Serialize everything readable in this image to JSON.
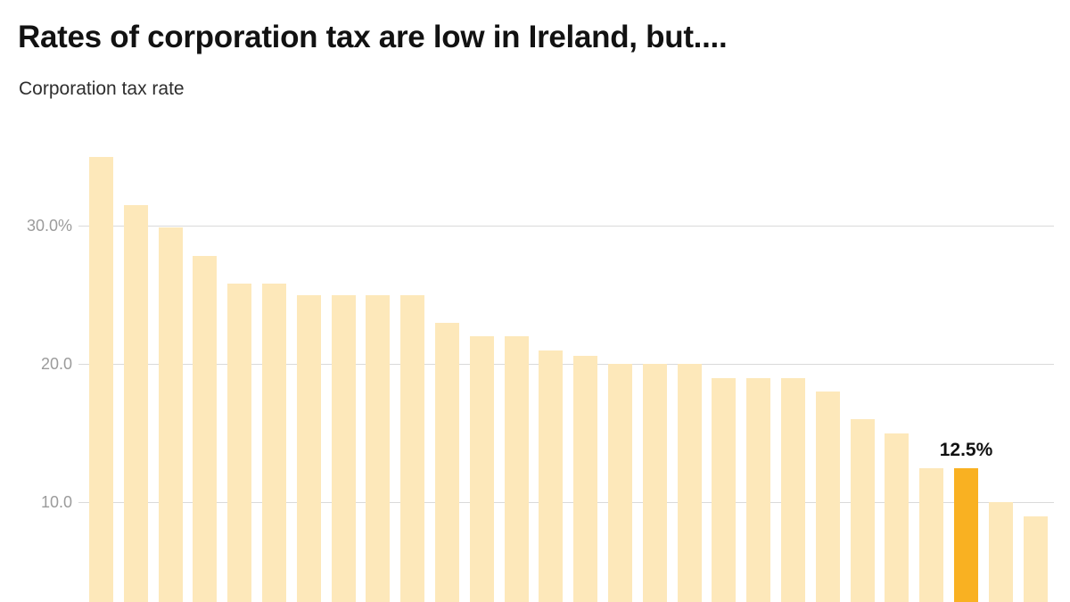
{
  "chart_data": {
    "type": "bar",
    "title": "Rates of corporation tax are low in Ireland, but....",
    "subtitle": "Corporation tax rate",
    "values": [
      35.0,
      31.5,
      29.9,
      27.8,
      25.8,
      25.8,
      25.0,
      25.0,
      25.0,
      25.0,
      23.0,
      22.0,
      22.0,
      21.0,
      20.6,
      20.0,
      20.0,
      20.0,
      19.0,
      19.0,
      19.0,
      18.0,
      16.0,
      15.0,
      12.5,
      12.5,
      10.0,
      9.0
    ],
    "bar_count": 28,
    "y_ticks": [
      {
        "label": "30.0%",
        "value": 30
      },
      {
        "label": "20.0",
        "value": 20
      },
      {
        "label": "10.0",
        "value": 10
      }
    ],
    "highlight": {
      "index": 25,
      "label": "12.5%",
      "value": 12.5
    },
    "grid": "horizontal",
    "x_axis_labels_visible": false,
    "bars_clipped_at_bottom": true,
    "colors": {
      "background": "#FFFFFF",
      "bar": "#FDE8BA",
      "highlight_bar": "#F9B122",
      "gridline": "#DADADA",
      "axis_label": "#9B9B9B",
      "title": "#121212",
      "subtitle": "#2E2E2E",
      "annotation": "#111111"
    }
  }
}
